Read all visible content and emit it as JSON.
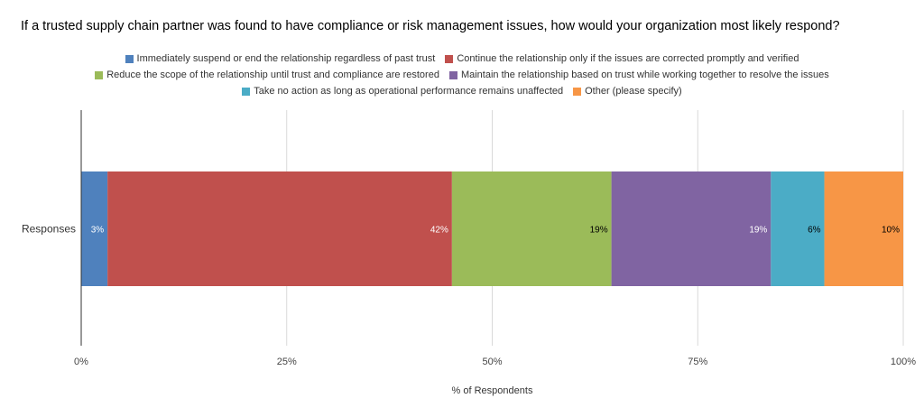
{
  "chart_data": {
    "type": "bar",
    "orientation": "horizontal",
    "stacked": true,
    "title": "If a trusted supply chain partner was found to have compliance or risk management issues, how would your organization most likely respond?",
    "categories": [
      "Responses"
    ],
    "series": [
      {
        "name": "Immediately suspend or end the relationship regardless of past trust",
        "values": [
          3.2
        ],
        "label": "3%",
        "color": "#4f81bd",
        "label_color": "#ffffff"
      },
      {
        "name": "Continue the relationship only if the issues are corrected promptly and verified",
        "values": [
          41.9
        ],
        "label": "42%",
        "color": "#c0504d",
        "label_color": "#ffffff"
      },
      {
        "name": "Reduce the scope of the relationship until trust and compliance are restored",
        "values": [
          19.4
        ],
        "label": "19%",
        "color": "#9bbb59",
        "label_color": "#000000"
      },
      {
        "name": "Maintain the relationship based on trust while working together to resolve the issues",
        "values": [
          19.4
        ],
        "label": "19%",
        "color": "#8064a2",
        "label_color": "#ffffff"
      },
      {
        "name": "Take no action as long as operational performance remains unaffected",
        "values": [
          6.5
        ],
        "label": "6%",
        "color": "#4bacc6",
        "label_color": "#000000"
      },
      {
        "name": "Other (please specify)",
        "values": [
          9.6
        ],
        "label": "10%",
        "color": "#f79646",
        "label_color": "#000000"
      }
    ],
    "xlabel": "% of Respondents",
    "ylabel": "",
    "xlim": [
      0,
      100
    ],
    "xticks": [
      0,
      25,
      50,
      75,
      100
    ],
    "xtick_labels": [
      "0%",
      "25%",
      "50%",
      "75%",
      "100%"
    ],
    "grid": true,
    "legend_position": "top-center"
  }
}
